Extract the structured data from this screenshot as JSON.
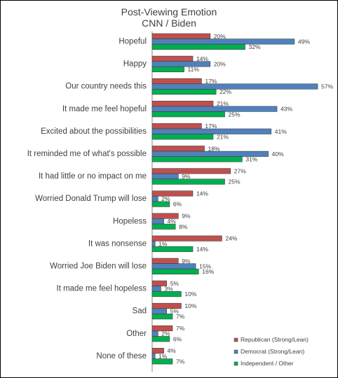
{
  "chart_data": {
    "type": "bar",
    "orientation": "horizontal",
    "title": "Post-Viewing Emotion",
    "subtitle": "CNN / Biden",
    "categories": [
      "Hopeful",
      "Happy",
      "Our country needs this",
      "It made me feel hopeful",
      "Excited about the possibilities",
      "It reminded me of what's possible",
      "It had little or no impact on me",
      "Worried Donald Trump will lose",
      "Hopeless",
      "It was nonsense",
      "Worried Joe Biden will lose",
      "It made me feel hopeless",
      "Sad",
      "Other",
      "None of these"
    ],
    "series": [
      {
        "name": "Republican (Strong/Lean)",
        "color": "#C0504D",
        "values": [
          20,
          14,
          17,
          21,
          17,
          18,
          27,
          14,
          9,
          24,
          9,
          5,
          10,
          7,
          4
        ]
      },
      {
        "name": "Democrat (Strong/Lean)",
        "color": "#4F81BD",
        "values": [
          49,
          20,
          57,
          43,
          41,
          40,
          9,
          2,
          4,
          1,
          15,
          3,
          5,
          2,
          1
        ]
      },
      {
        "name": "Independent / Other",
        "color": "#00B050",
        "values": [
          32,
          11,
          22,
          25,
          21,
          31,
          25,
          6,
          8,
          14,
          16,
          10,
          7,
          6,
          7
        ]
      }
    ],
    "value_suffix": "%",
    "xlim": [
      0,
      57
    ],
    "grid": false,
    "legend": "bottom-right"
  }
}
